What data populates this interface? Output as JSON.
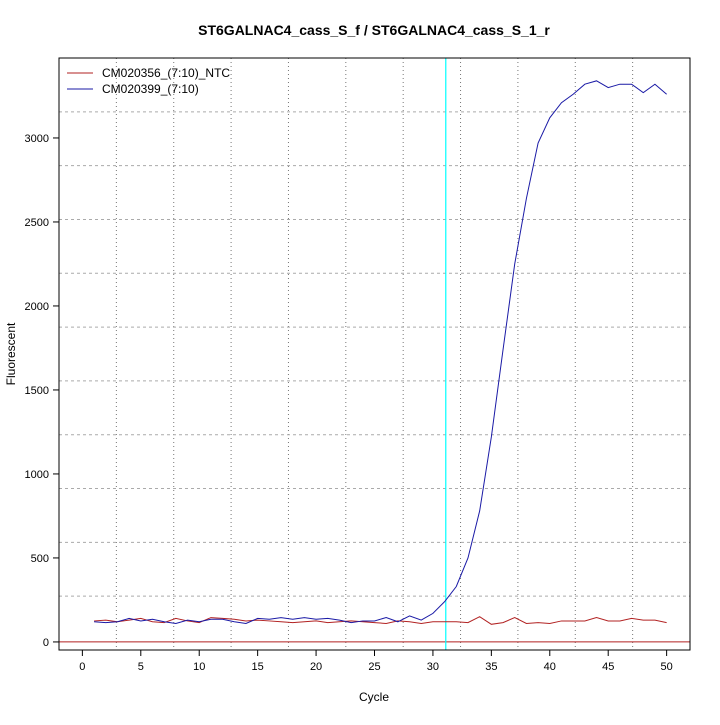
{
  "chart_data": {
    "type": "line",
    "title": "ST6GALNAC4_cass_S_f / ST6GALNAC4_cass_S_1_r",
    "xlabel": "Cycle",
    "ylabel": "Fluorescent",
    "xlim": [
      -2,
      52
    ],
    "ylim": [
      -48,
      3476
    ],
    "xticks": [
      0,
      5,
      10,
      15,
      20,
      25,
      30,
      35,
      40,
      45,
      50
    ],
    "yticks": [
      0,
      500,
      1000,
      1500,
      2000,
      2500,
      3000
    ],
    "grid": true,
    "legend_position": "top-left",
    "threshold_line": {
      "axis": "x",
      "value": 31.1,
      "color": "#00ffff"
    },
    "baseline": {
      "axis": "y",
      "value": 0,
      "color": "#b22222"
    },
    "x": [
      1,
      2,
      3,
      4,
      5,
      6,
      7,
      8,
      9,
      10,
      11,
      12,
      13,
      14,
      15,
      16,
      17,
      18,
      19,
      20,
      21,
      22,
      23,
      24,
      25,
      26,
      27,
      28,
      29,
      30,
      31,
      32,
      33,
      34,
      35,
      36,
      37,
      38,
      39,
      40,
      41,
      42,
      43,
      44,
      45,
      46,
      47,
      48,
      49,
      50
    ],
    "series": [
      {
        "name": "CM020356_(7:10)_NTC",
        "color": "#b22222",
        "values": [
          125,
          130,
          120,
          130,
          140,
          120,
          115,
          140,
          125,
          115,
          145,
          140,
          135,
          125,
          130,
          125,
          120,
          115,
          120,
          125,
          115,
          120,
          125,
          120,
          115,
          110,
          125,
          120,
          110,
          120,
          120,
          120,
          115,
          150,
          105,
          115,
          145,
          110,
          115,
          110,
          125,
          125,
          125,
          145,
          125,
          125,
          140,
          130,
          130,
          115
        ]
      },
      {
        "name": "CM020399_(7:10)",
        "color": "#1a1aa6",
        "values": [
          120,
          115,
          120,
          140,
          125,
          135,
          120,
          110,
          130,
          120,
          135,
          135,
          120,
          110,
          140,
          135,
          145,
          135,
          145,
          135,
          140,
          130,
          115,
          125,
          125,
          145,
          120,
          155,
          130,
          170,
          240,
          330,
          500,
          780,
          1220,
          1740,
          2250,
          2640,
          2970,
          3120,
          3210,
          3260,
          3320,
          3340,
          3300,
          3320,
          3320,
          3270,
          3320,
          3260
        ]
      }
    ]
  }
}
